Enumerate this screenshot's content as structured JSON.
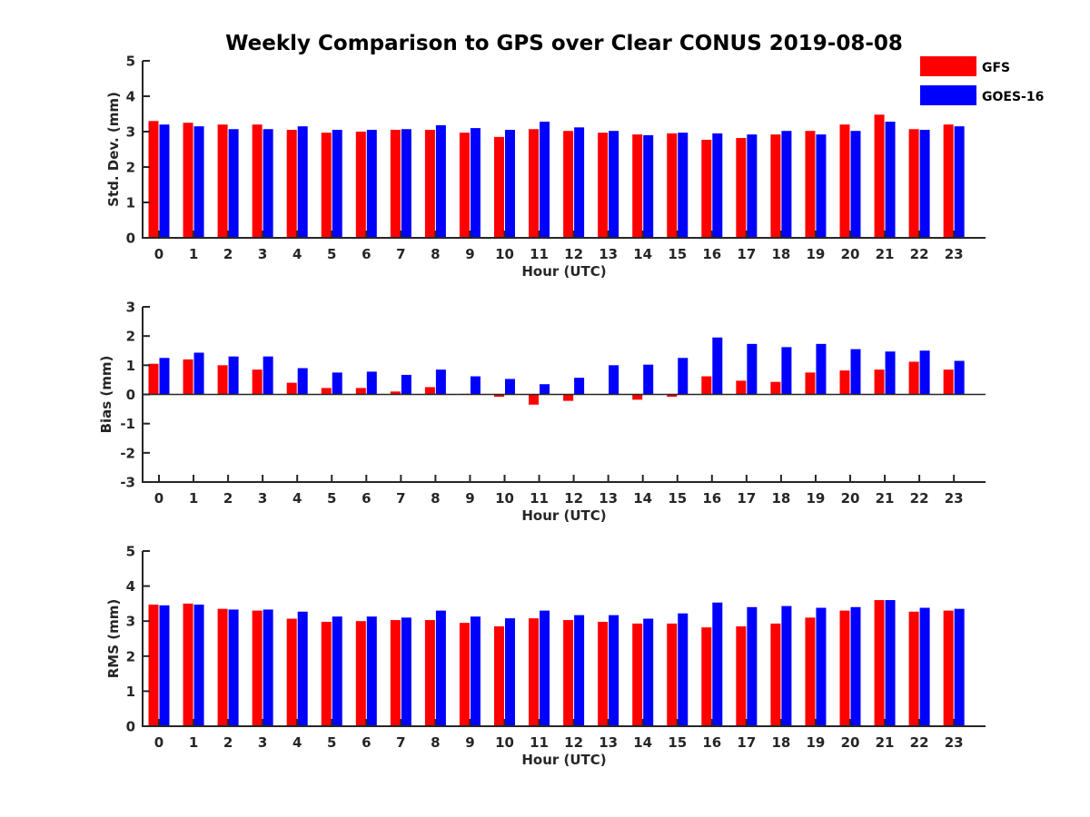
{
  "title": "Weekly Comparison to GPS over Clear CONUS 2019-08-08",
  "legend": [
    {
      "label": "GFS",
      "color": "#ff0000"
    },
    {
      "label": "GOES-16",
      "color": "#0000ff"
    }
  ],
  "chart_data": [
    {
      "type": "bar",
      "ylabel": "Std. Dev. (mm)",
      "xlabel": "Hour (UTC)",
      "ylim": [
        0,
        5
      ],
      "yticks": [
        0,
        1,
        2,
        3,
        4,
        5
      ],
      "categories": [
        "0",
        "1",
        "2",
        "3",
        "4",
        "5",
        "6",
        "7",
        "8",
        "9",
        "10",
        "11",
        "12",
        "13",
        "14",
        "15",
        "16",
        "17",
        "18",
        "19",
        "20",
        "21",
        "22",
        "23"
      ],
      "series": [
        {
          "name": "GFS",
          "values": [
            3.3,
            3.25,
            3.2,
            3.2,
            3.05,
            2.97,
            3.0,
            3.05,
            3.05,
            2.97,
            2.85,
            3.07,
            3.02,
            2.97,
            2.92,
            2.95,
            2.77,
            2.82,
            2.92,
            3.02,
            3.2,
            3.48,
            3.07,
            3.2
          ]
        },
        {
          "name": "GOES-16",
          "values": [
            3.2,
            3.15,
            3.07,
            3.07,
            3.15,
            3.05,
            3.05,
            3.07,
            3.18,
            3.1,
            3.05,
            3.28,
            3.12,
            3.02,
            2.9,
            2.97,
            2.95,
            2.92,
            3.02,
            2.92,
            3.02,
            3.28,
            3.05,
            3.15
          ]
        }
      ]
    },
    {
      "type": "bar",
      "ylabel": "Bias (mm)",
      "xlabel": "Hour (UTC)",
      "ylim": [
        -3,
        3
      ],
      "yticks": [
        -3,
        -2,
        -1,
        0,
        1,
        2,
        3
      ],
      "categories": [
        "0",
        "1",
        "2",
        "3",
        "4",
        "5",
        "6",
        "7",
        "8",
        "9",
        "10",
        "11",
        "12",
        "13",
        "14",
        "15",
        "16",
        "17",
        "18",
        "19",
        "20",
        "21",
        "22",
        "23"
      ],
      "series": [
        {
          "name": "GFS",
          "values": [
            1.05,
            1.2,
            1.0,
            0.85,
            0.4,
            0.22,
            0.22,
            0.1,
            0.25,
            0.02,
            -0.08,
            -0.35,
            -0.22,
            0.0,
            -0.18,
            -0.08,
            0.62,
            0.47,
            0.43,
            0.75,
            0.82,
            0.85,
            1.12,
            0.85
          ]
        },
        {
          "name": "GOES-16",
          "values": [
            1.25,
            1.43,
            1.3,
            1.3,
            0.9,
            0.75,
            0.78,
            0.67,
            0.85,
            0.62,
            0.53,
            0.35,
            0.57,
            1.0,
            1.02,
            1.25,
            1.95,
            1.73,
            1.62,
            1.73,
            1.55,
            1.47,
            1.5,
            1.15
          ]
        }
      ]
    },
    {
      "type": "bar",
      "ylabel": "RMS (mm)",
      "xlabel": "Hour (UTC)",
      "ylim": [
        0,
        5
      ],
      "yticks": [
        0,
        1,
        2,
        3,
        4,
        5
      ],
      "categories": [
        "0",
        "1",
        "2",
        "3",
        "4",
        "5",
        "6",
        "7",
        "8",
        "9",
        "10",
        "11",
        "12",
        "13",
        "14",
        "15",
        "16",
        "17",
        "18",
        "19",
        "20",
        "21",
        "22",
        "23"
      ],
      "series": [
        {
          "name": "GFS",
          "values": [
            3.47,
            3.5,
            3.35,
            3.3,
            3.07,
            2.98,
            3.0,
            3.03,
            3.03,
            2.95,
            2.85,
            3.08,
            3.03,
            2.98,
            2.93,
            2.93,
            2.82,
            2.85,
            2.93,
            3.1,
            3.3,
            3.6,
            3.27,
            3.3
          ]
        },
        {
          "name": "GOES-16",
          "values": [
            3.45,
            3.47,
            3.33,
            3.33,
            3.27,
            3.13,
            3.13,
            3.1,
            3.3,
            3.13,
            3.08,
            3.3,
            3.17,
            3.17,
            3.07,
            3.22,
            3.53,
            3.4,
            3.43,
            3.38,
            3.4,
            3.6,
            3.38,
            3.35
          ]
        }
      ]
    }
  ]
}
